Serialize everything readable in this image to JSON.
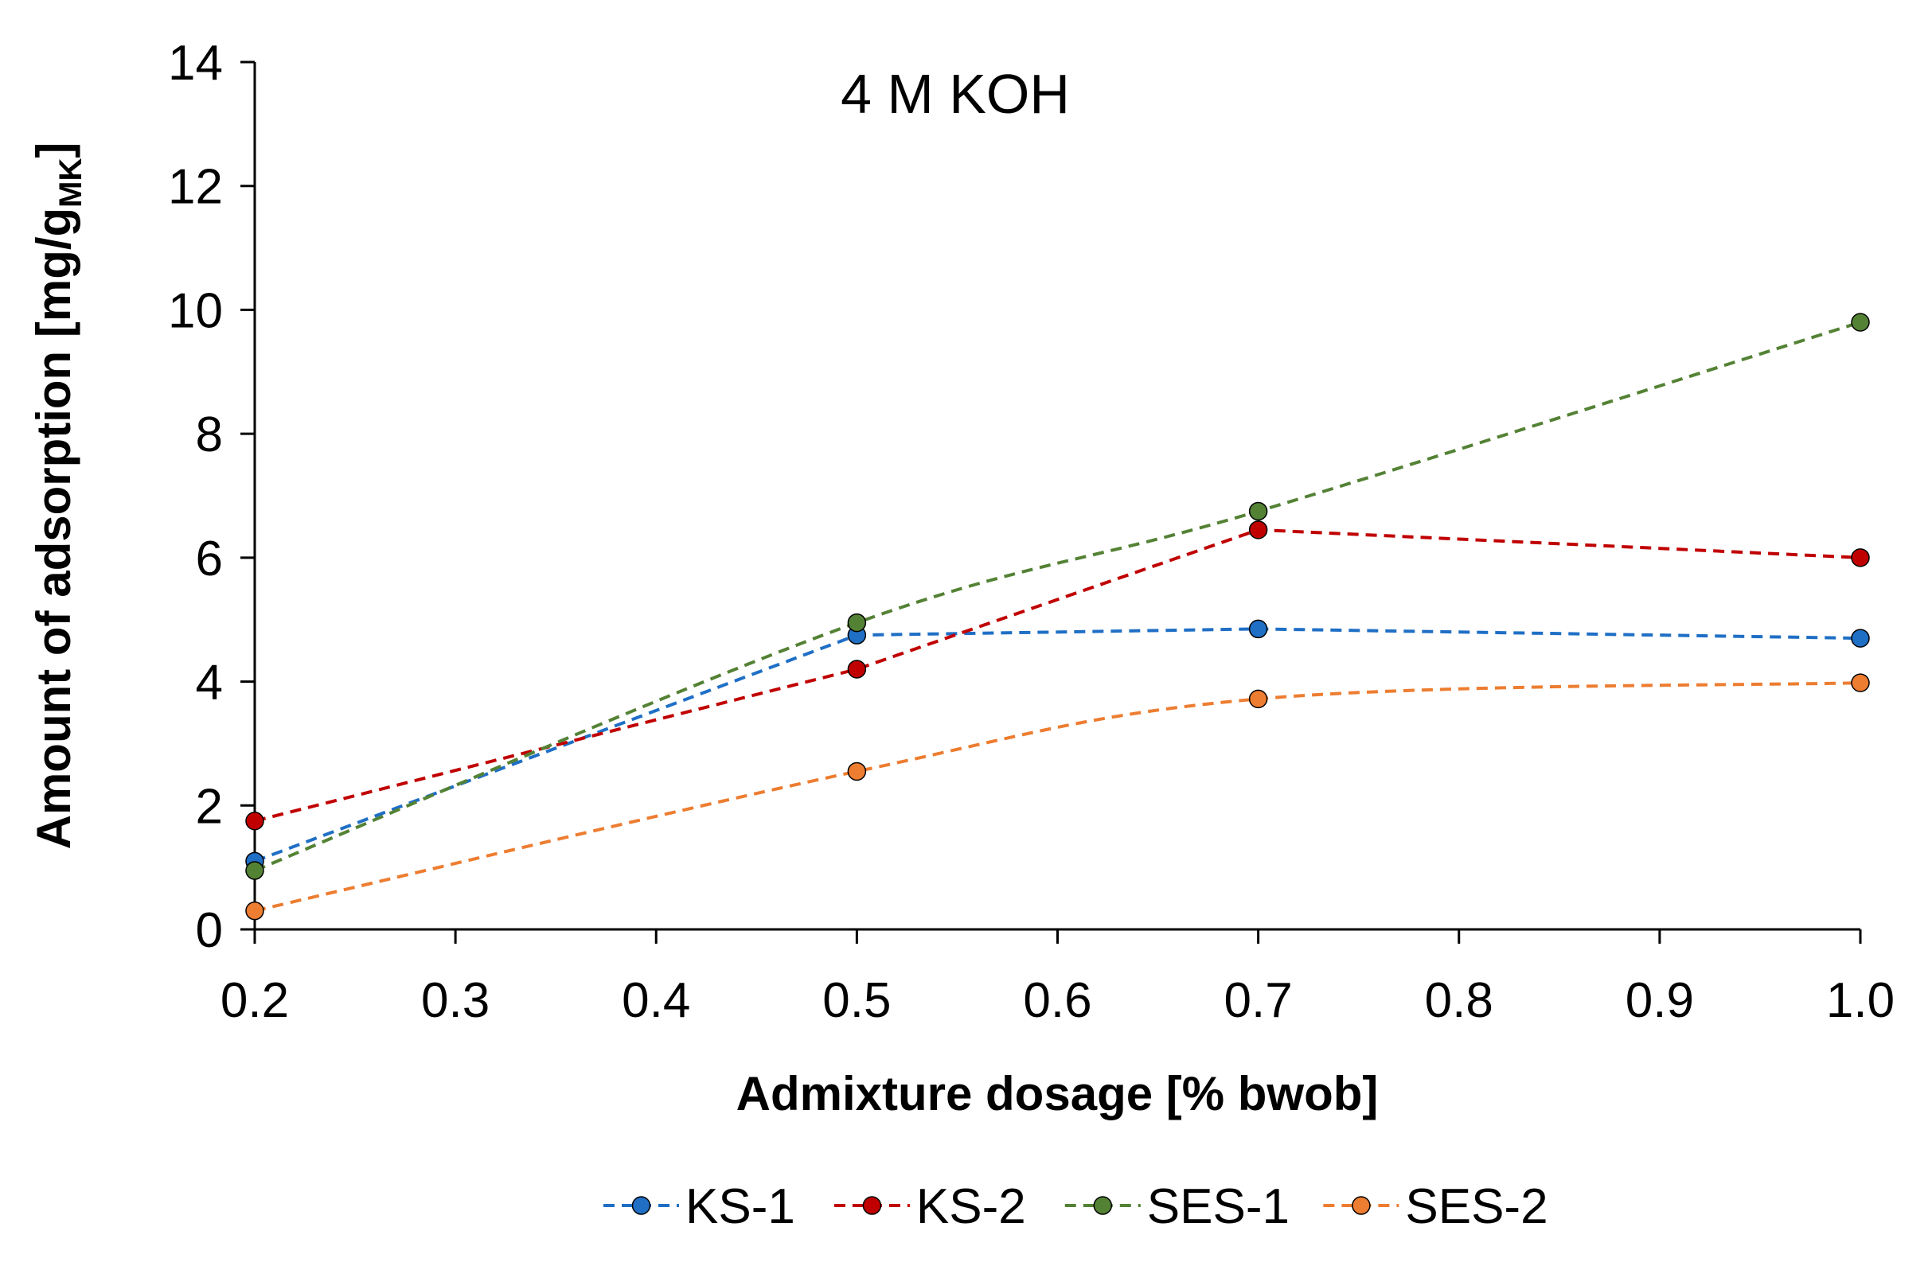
{
  "chart_data": {
    "type": "line",
    "title": "4 M KOH",
    "xlabel": "Admixture dosage [% bwob]",
    "ylabel_main": "Amount of adsorption [mg/g",
    "ylabel_sub": "MK",
    "ylabel_end": "]",
    "xlim": [
      0.2,
      1.0
    ],
    "ylim": [
      0,
      14
    ],
    "x_ticks": [
      "0.2",
      "0.3",
      "0.4",
      "0.5",
      "0.6",
      "0.7",
      "0.8",
      "0.9",
      "1.0"
    ],
    "y_ticks": [
      "0",
      "2",
      "4",
      "6",
      "8",
      "10",
      "12",
      "14"
    ],
    "x": [
      0.2,
      0.5,
      0.7,
      1.0
    ],
    "series": [
      {
        "name": "KS-1",
        "values": [
          1.1,
          4.75,
          4.85,
          4.7
        ],
        "color": "#1F6FC5",
        "smooth": false
      },
      {
        "name": "KS-2",
        "values": [
          1.75,
          4.2,
          6.45,
          6.0
        ],
        "color": "#C00000",
        "smooth": false
      },
      {
        "name": "SES-1",
        "values": [
          0.95,
          4.95,
          6.75,
          9.8
        ],
        "color": "#548235",
        "smooth": true
      },
      {
        "name": "SES-2",
        "values": [
          0.3,
          2.55,
          3.72,
          3.98
        ],
        "color": "#ED7D31",
        "smooth": true
      }
    ],
    "legend_position": "bottom",
    "grid": false
  }
}
